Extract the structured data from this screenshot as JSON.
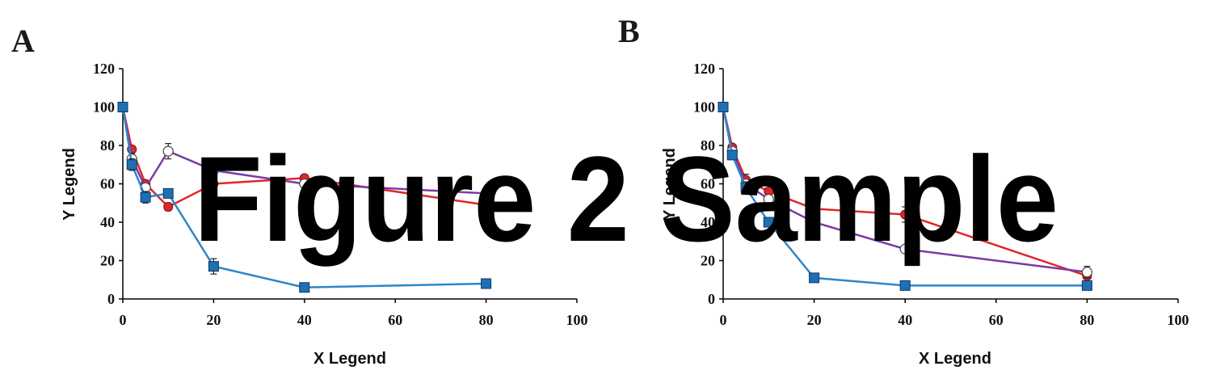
{
  "watermark": "Figure 2 Sample",
  "colors": {
    "red": "#e0262b",
    "purple": "#7b3aa4",
    "blue": "#2f86c9",
    "blue_marker": "#1f6fb5",
    "axis": "#000000"
  },
  "chart_data": [
    {
      "panel": "A",
      "type": "line",
      "xlabel": "X Legend",
      "ylabel": "Y Legend",
      "xlim": [
        0,
        100
      ],
      "ylim": [
        0,
        120
      ],
      "xticks": [
        0,
        20,
        40,
        60,
        80,
        100
      ],
      "yticks": [
        0,
        20,
        40,
        60,
        80,
        100,
        120
      ],
      "grid": false,
      "series": [
        {
          "color": "red",
          "marker": "filled-circle",
          "x": [
            0,
            2,
            5,
            10,
            20,
            40,
            80
          ],
          "y": [
            100,
            78,
            60,
            48,
            60,
            63,
            49
          ],
          "err": [
            0,
            0,
            1,
            2,
            0,
            1,
            0
          ]
        },
        {
          "color": "purple",
          "marker": "open-circle",
          "x": [
            0,
            2,
            5,
            10,
            20,
            40,
            80
          ],
          "y": [
            100,
            73,
            58,
            77,
            67,
            60,
            55
          ],
          "err": [
            0,
            3,
            2,
            4,
            2,
            0,
            0
          ]
        },
        {
          "color": "blue",
          "marker": "filled-square",
          "x": [
            0,
            2,
            5,
            10,
            20,
            40,
            80
          ],
          "y": [
            100,
            70,
            53,
            55,
            17,
            6,
            8
          ],
          "err": [
            0,
            3,
            3,
            0,
            4,
            1,
            0
          ]
        }
      ]
    },
    {
      "panel": "B",
      "type": "line",
      "xlabel": "X Legend",
      "ylabel": "Y Legend",
      "xlim": [
        0,
        100
      ],
      "ylim": [
        0,
        120
      ],
      "xticks": [
        0,
        20,
        40,
        60,
        80,
        100
      ],
      "yticks": [
        0,
        20,
        40,
        60,
        80,
        100,
        120
      ],
      "grid": false,
      "series": [
        {
          "color": "red",
          "marker": "filled-circle",
          "x": [
            0,
            2,
            5,
            10,
            20,
            40,
            80
          ],
          "y": [
            100,
            79,
            62,
            56,
            47,
            44,
            12
          ],
          "err": [
            0,
            0,
            3,
            2,
            0,
            4,
            0
          ]
        },
        {
          "color": "purple",
          "marker": "open-circle",
          "x": [
            0,
            2,
            5,
            10,
            20,
            40,
            80
          ],
          "y": [
            100,
            77,
            60,
            52,
            40,
            26,
            14
          ],
          "err": [
            0,
            0,
            0,
            0,
            6,
            0,
            3
          ]
        },
        {
          "color": "blue",
          "marker": "filled-square",
          "x": [
            0,
            2,
            5,
            10,
            20,
            40,
            80
          ],
          "y": [
            100,
            75,
            58,
            40,
            11,
            7,
            7
          ],
          "err": [
            0,
            0,
            3,
            0,
            0,
            1,
            0
          ]
        }
      ]
    }
  ]
}
